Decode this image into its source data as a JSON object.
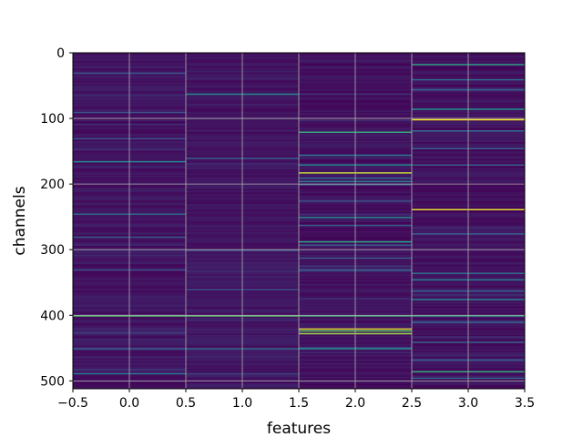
{
  "chart_data": {
    "type": "heatmap",
    "title": "",
    "xlabel": "features",
    "ylabel": "channels",
    "x_columns": [
      0,
      1,
      2,
      3
    ],
    "xlim": [
      -0.5,
      3.5
    ],
    "ylim": [
      512,
      0
    ],
    "y_inverted": true,
    "n_rows": 512,
    "grid": true,
    "colormap": "viridis",
    "value_range": [
      0,
      1
    ],
    "base_values": [
      0.06,
      0.06,
      0.05,
      0.05
    ],
    "xticks": [
      "−0.5",
      "0.0",
      "0.5",
      "1.0",
      "1.5",
      "2.0",
      "2.5",
      "3.0",
      "3.5"
    ],
    "yticks": [
      "0",
      "100",
      "200",
      "300",
      "400",
      "500"
    ],
    "highlights": {
      "col0": [
        [
          165,
          0.45
        ],
        [
          245,
          0.35
        ],
        [
          280,
          0.3
        ],
        [
          400,
          0.7
        ],
        [
          488,
          0.4
        ],
        [
          30,
          0.25
        ],
        [
          90,
          0.25
        ],
        [
          130,
          0.25
        ],
        [
          330,
          0.25
        ],
        [
          450,
          0.3
        ]
      ],
      "col1": [
        [
          62,
          0.45
        ],
        [
          160,
          0.3
        ],
        [
          400,
          0.7
        ],
        [
          450,
          0.35
        ],
        [
          300,
          0.25
        ],
        [
          360,
          0.25
        ]
      ],
      "col2": [
        [
          120,
          0.6
        ],
        [
          155,
          0.4
        ],
        [
          170,
          0.45
        ],
        [
          182,
          0.9
        ],
        [
          190,
          0.35
        ],
        [
          195,
          0.4
        ],
        [
          200,
          0.3
        ],
        [
          250,
          0.5
        ],
        [
          262,
          0.3
        ],
        [
          287,
          0.55
        ],
        [
          292,
          0.3
        ],
        [
          312,
          0.3
        ],
        [
          330,
          0.35
        ],
        [
          400,
          0.6
        ],
        [
          420,
          0.95
        ],
        [
          423,
          0.7
        ],
        [
          427,
          0.85
        ],
        [
          450,
          0.5
        ],
        [
          330,
          0.3
        ],
        [
          225,
          0.25
        ]
      ],
      "col3": [
        [
          17,
          0.55
        ],
        [
          40,
          0.35
        ],
        [
          55,
          0.3
        ],
        [
          85,
          0.5
        ],
        [
          101,
          0.98
        ],
        [
          118,
          0.35
        ],
        [
          145,
          0.3
        ],
        [
          170,
          0.3
        ],
        [
          238,
          0.95
        ],
        [
          275,
          0.3
        ],
        [
          335,
          0.35
        ],
        [
          345,
          0.4
        ],
        [
          362,
          0.3
        ],
        [
          375,
          0.45
        ],
        [
          400,
          0.55
        ],
        [
          410,
          0.3
        ],
        [
          440,
          0.3
        ],
        [
          467,
          0.3
        ],
        [
          485,
          0.6
        ],
        [
          495,
          0.35
        ]
      ]
    }
  }
}
